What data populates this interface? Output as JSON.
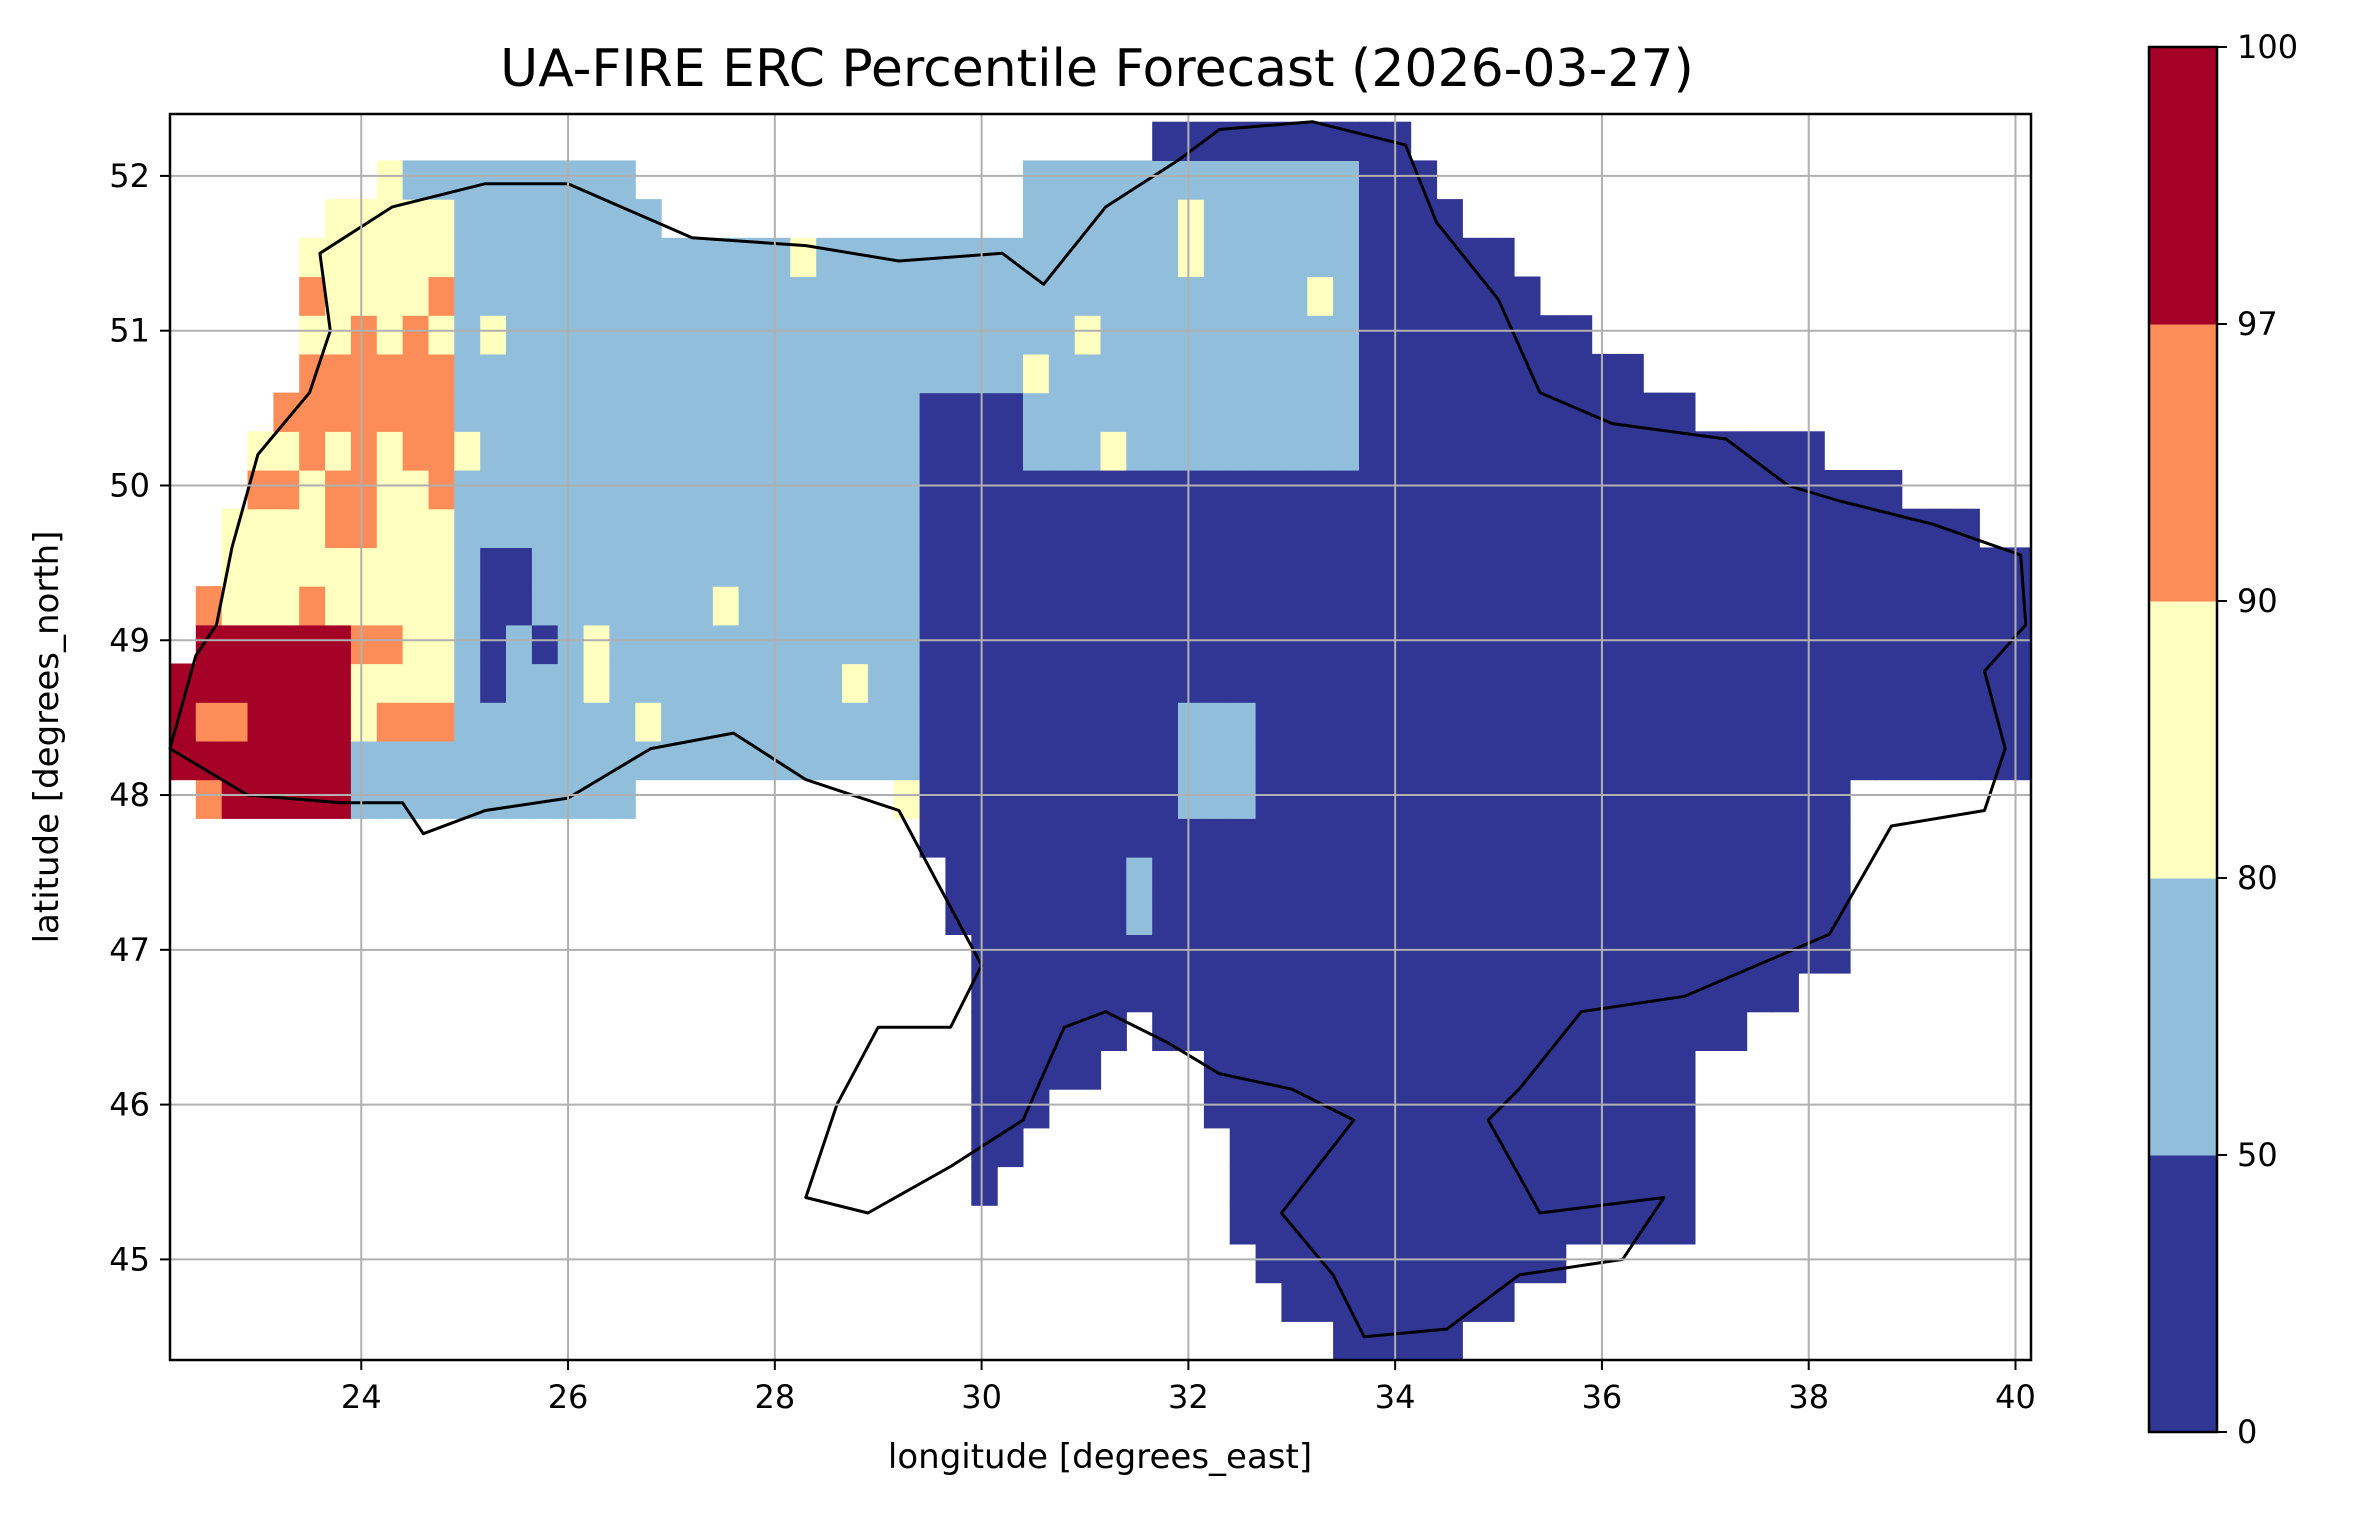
{
  "chart_data": {
    "type": "heatmap",
    "title": "UA-FIRE ERC Percentile Forecast (2026-03-27)",
    "xlabel": "longitude [degrees_east]",
    "ylabel": "latitude [degrees_north]",
    "xlim": [
      22.15,
      40.15
    ],
    "ylim": [
      44.35,
      52.4
    ],
    "x_ticks": [
      24,
      26,
      28,
      30,
      32,
      34,
      36,
      38,
      40
    ],
    "y_ticks": [
      45,
      46,
      47,
      48,
      49,
      50,
      51,
      52
    ],
    "grid": true,
    "grid_resolution_deg": 0.25,
    "colorbar": {
      "boundaries": [
        0,
        50,
        80,
        90,
        97,
        100
      ],
      "tick_labels": [
        "0",
        "50",
        "80",
        "90",
        "97",
        "100"
      ],
      "colors": [
        "#313695",
        "#91bfdb",
        "#ffffbf",
        "#fc8d59",
        "#a50026"
      ]
    },
    "regions": [
      {
        "bin": 0,
        "color": "#313695",
        "comment": "east",
        "lon": [
          29.5,
          40.1
        ],
        "lat": [
          44.4,
          51.9
        ]
      },
      {
        "bin": 1,
        "color": "#91bfdb",
        "comment": "center-north",
        "lon": [
          24.3,
          31.0
        ],
        "lat": [
          47.7,
          52.1
        ]
      },
      {
        "bin": 2,
        "color": "#ffffbf",
        "comment": "west",
        "lon": [
          22.6,
          25.0
        ],
        "lat": [
          48.3,
          52.1
        ]
      },
      {
        "bin": 3,
        "color": "#fc8d59",
        "comment": "west",
        "lon": [
          22.2,
          25.0
        ],
        "lat": [
          47.9,
          50.9
        ]
      },
      {
        "bin": 4,
        "color": "#a50026",
        "comment": "southwest",
        "lon": [
          22.2,
          23.9
        ],
        "lat": [
          47.9,
          49.1
        ]
      }
    ]
  }
}
